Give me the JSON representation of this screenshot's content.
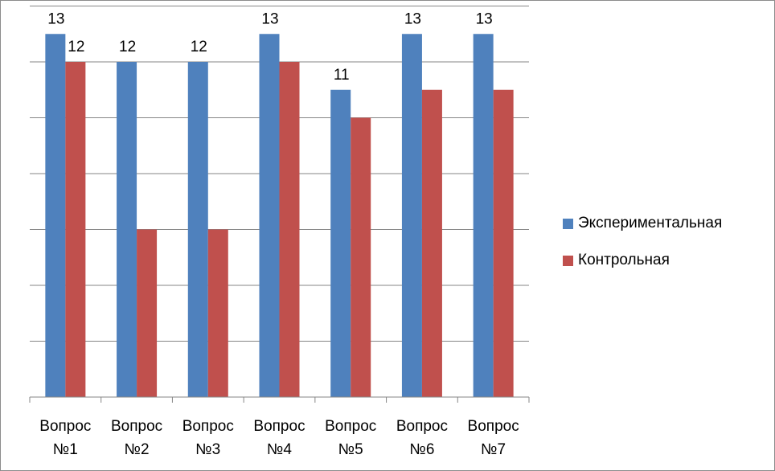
{
  "chart_data": {
    "type": "bar",
    "title": "",
    "xlabel": "",
    "ylabel": "",
    "ylim": [
      0,
      14
    ],
    "grid": true,
    "legend_position": "right",
    "categories": [
      [
        "Вопрос",
        "№1"
      ],
      [
        "Вопрос",
        "№2"
      ],
      [
        "Вопрос",
        "№3"
      ],
      [
        "Вопрос",
        "№4"
      ],
      [
        "Вопрос",
        "№5"
      ],
      [
        "Вопрос",
        "№6"
      ],
      [
        "Вопрос",
        "№7"
      ]
    ],
    "series": [
      {
        "name": "Экспериментальная",
        "color": "#4f81bd",
        "values": [
          13,
          12,
          12,
          13,
          11,
          13,
          13
        ],
        "data_labels": [
          "13",
          "12",
          "12",
          "13",
          "11",
          "13",
          "13"
        ]
      },
      {
        "name": "Контрольная",
        "color": "#c0504d",
        "values": [
          12,
          6,
          6,
          12,
          10,
          11,
          11
        ],
        "data_labels": [
          "12",
          "",
          "",
          "",
          "",
          "",
          ""
        ]
      }
    ]
  }
}
